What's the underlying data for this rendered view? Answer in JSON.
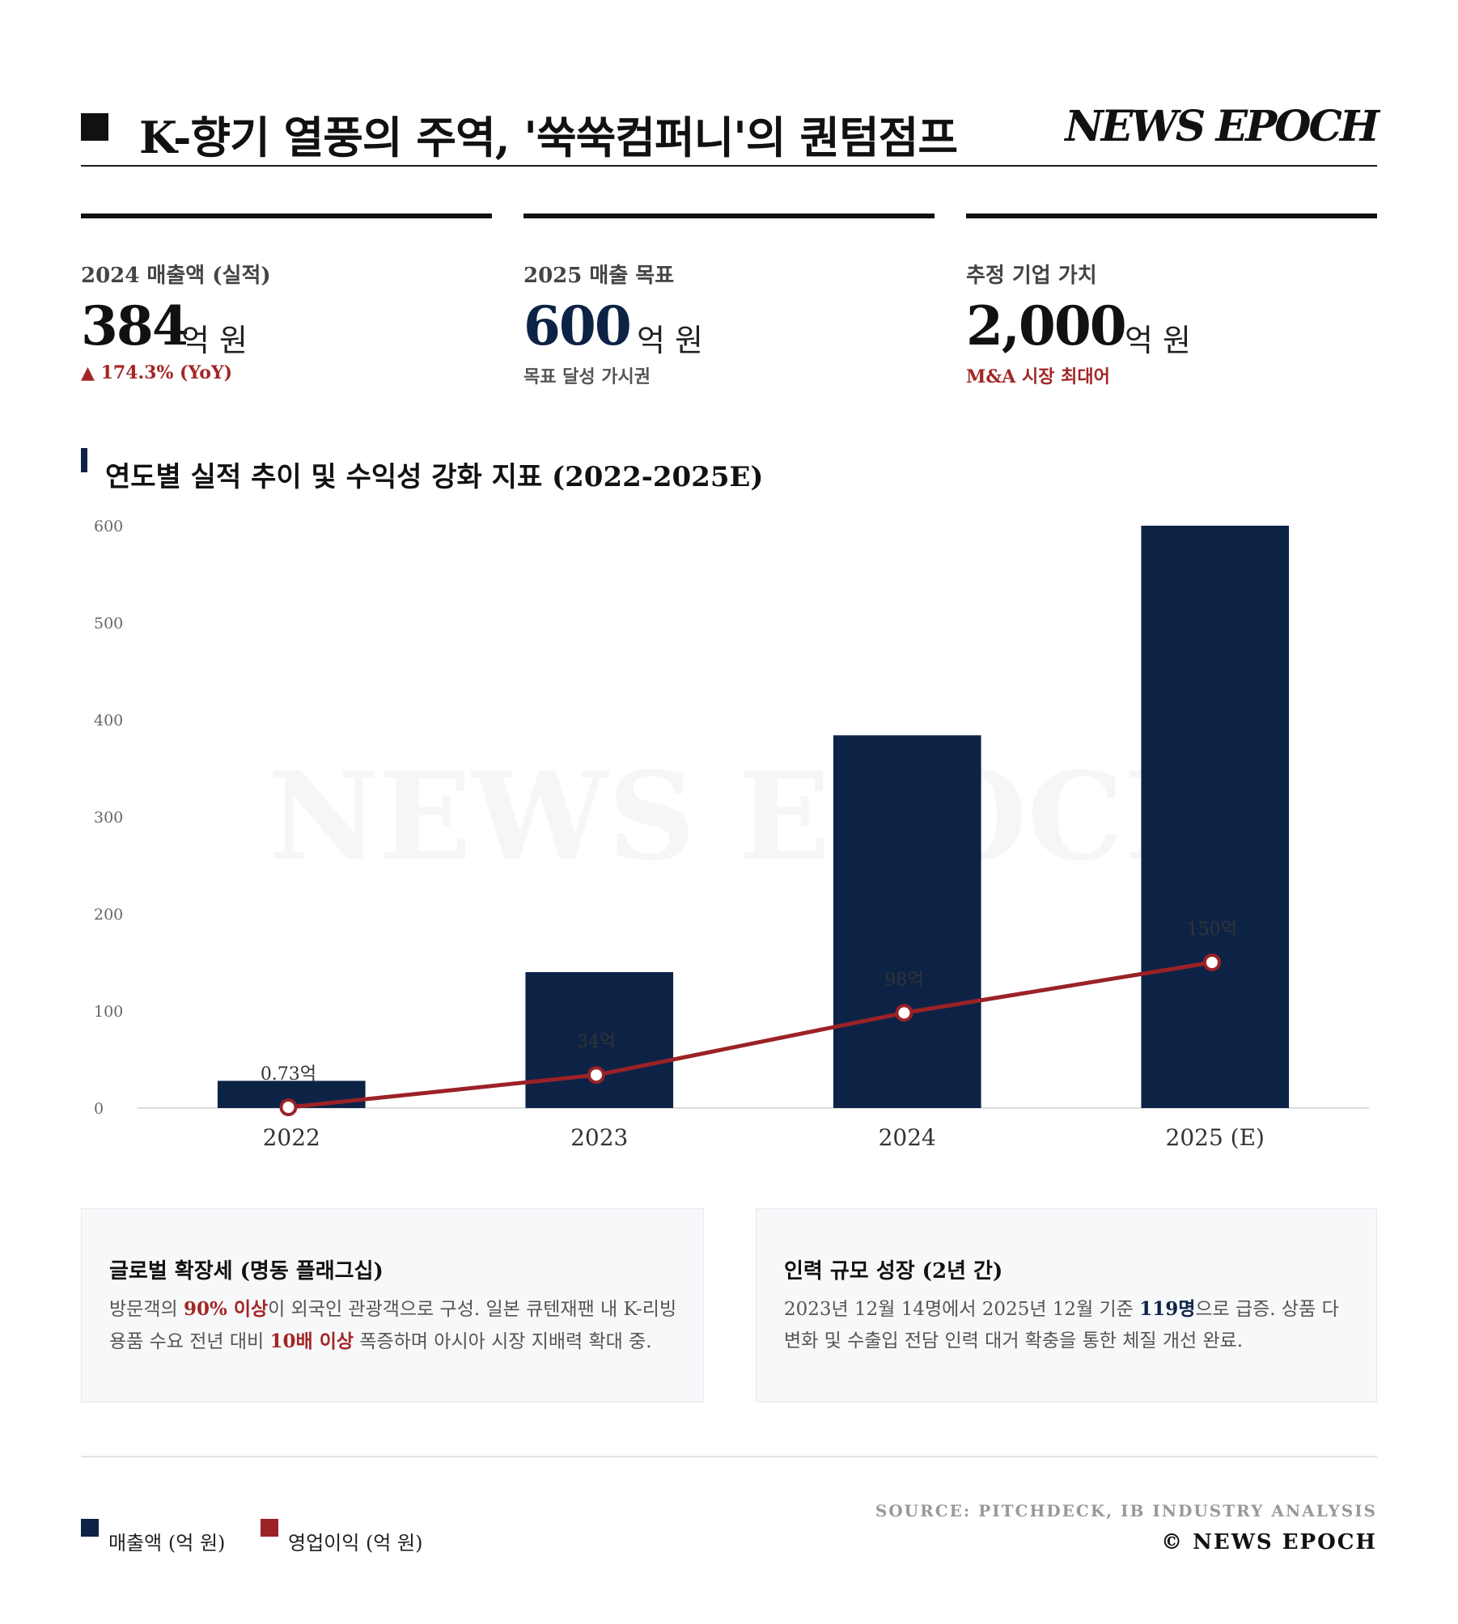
{
  "header": {
    "title": "K-향기 열풍의 주역, '쑥쑥컴퍼니'의 퀀텀점프",
    "brand": "NEWS EPOCH"
  },
  "kpis": [
    {
      "label": "2024 매출액 (실적)",
      "value": "384",
      "unit": "억 원",
      "note": "▲ 174.3% (YoY)",
      "note_color": "#a32626"
    },
    {
      "label": "2025 매출 목표",
      "value": "600",
      "unit": "억 원",
      "note": "목표 달성 가시권",
      "note_color": "#555555"
    },
    {
      "label": "추정 기업 가치",
      "value": "2,000",
      "unit": "억 원",
      "note": "M&A 시장 최대어",
      "note_color": "#a32626"
    }
  ],
  "section_title": "연도별 실적 추이 및 수익성 강화 지표 (2022-2025E)",
  "chart_data": {
    "type": "bar",
    "categories": [
      "2022",
      "2023",
      "2024",
      "2025 (E)"
    ],
    "series": [
      {
        "name": "매출액 (억 원)",
        "type": "bar",
        "color": "#0d2346",
        "values": [
          28,
          140,
          384,
          600
        ]
      },
      {
        "name": "영업이익 (억 원)",
        "type": "line",
        "color": "#9b2226",
        "values": [
          0.73,
          34,
          98,
          150
        ],
        "labels": [
          "0.73억",
          "34억",
          "98억",
          "150억"
        ]
      }
    ],
    "yticks": [
      0,
      100,
      200,
      300,
      400,
      500,
      600
    ],
    "ylim": [
      0,
      600
    ],
    "grid": false,
    "watermark": "NEWS EPOCH"
  },
  "boxes": [
    {
      "title": "글로벌 확장세 (명동 플래그십)",
      "body": [
        {
          "t": "방문객의 ",
          "hl": ""
        },
        {
          "t": "90% 이상",
          "hl": "red"
        },
        {
          "t": "이 외국인 관광객으로 구성. 일본 큐텐재팬 내 K-리빙용품 수요 전년 대비 ",
          "hl": ""
        },
        {
          "t": "10배 이상",
          "hl": "red"
        },
        {
          "t": " 폭증하며 아시아 시장 지배력 확대 중.",
          "hl": ""
        }
      ]
    },
    {
      "title": "인력 규모 성장 (2년 간)",
      "body": [
        {
          "t": "2023년 12월 14명에서 2025년 12월 기준 ",
          "hl": ""
        },
        {
          "t": "119명",
          "hl": "navy"
        },
        {
          "t": "으로 급증. 상품 다변화 및 수출입 전담 인력 대거 확충을 통한 체질 개선 완료.",
          "hl": ""
        }
      ]
    }
  ],
  "legend": [
    {
      "label": "매출액 (억 원)",
      "color": "#0d2346"
    },
    {
      "label": "영업이익 (억 원)",
      "color": "#9b2226"
    }
  ],
  "footer": {
    "source": "SOURCE: PITCHDECK, IB INDUSTRY ANALYSIS",
    "copyright": "© NEWS EPOCH"
  }
}
